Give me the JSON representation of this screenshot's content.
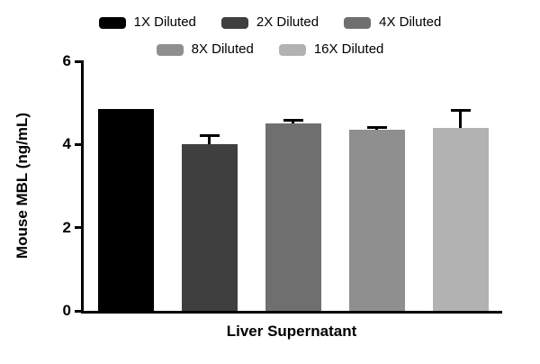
{
  "chart_data": {
    "type": "bar",
    "title": "",
    "xlabel": "Liver Supernatant",
    "ylabel": "Mouse MBL (ng/mL)",
    "ylim": [
      0,
      6
    ],
    "yticks": [
      0,
      2,
      4,
      6
    ],
    "grid": false,
    "legend_position": "top",
    "categories": [
      "Liver Supernatant"
    ],
    "series": [
      {
        "name": "1X Diluted",
        "value": 4.85,
        "error": 0,
        "color": "#000000"
      },
      {
        "name": "2X Diluted",
        "value": 4.0,
        "error": 0.25,
        "color": "#3f3f3f"
      },
      {
        "name": "4X Diluted",
        "value": 4.5,
        "error": 0.12,
        "color": "#6f6f6f"
      },
      {
        "name": "8X Diluted",
        "value": 4.35,
        "error": 0.1,
        "color": "#8f8f8f"
      },
      {
        "name": "16X Diluted",
        "value": 4.4,
        "error": 0.45,
        "color": "#b2b2b2"
      }
    ]
  }
}
